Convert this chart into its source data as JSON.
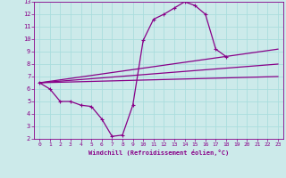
{
  "xlabel": "Windchill (Refroidissement éolien,°C)",
  "xlim": [
    -0.5,
    23.5
  ],
  "ylim": [
    2,
    13
  ],
  "xticks": [
    0,
    1,
    2,
    3,
    4,
    5,
    6,
    7,
    8,
    9,
    10,
    11,
    12,
    13,
    14,
    15,
    16,
    17,
    18,
    19,
    20,
    21,
    22,
    23
  ],
  "yticks": [
    2,
    3,
    4,
    5,
    6,
    7,
    8,
    9,
    10,
    11,
    12,
    13
  ],
  "bg_color": "#cceaea",
  "line_color": "#880088",
  "grid_color": "#aadddd",
  "main_x": [
    0,
    1,
    2,
    3,
    4,
    5,
    6,
    7,
    8,
    9,
    10,
    11,
    12,
    13,
    14,
    15,
    16,
    17,
    18
  ],
  "main_y": [
    6.5,
    6.0,
    5.0,
    5.0,
    4.7,
    4.6,
    3.6,
    2.2,
    2.3,
    4.7,
    9.9,
    11.6,
    12.0,
    12.5,
    13.0,
    12.7,
    12.0,
    9.2,
    8.6
  ],
  "line2_x": [
    0,
    23
  ],
  "line2_y": [
    6.5,
    9.2
  ],
  "line3_x": [
    0,
    23
  ],
  "line3_y": [
    6.5,
    8.0
  ],
  "line4_x": [
    0,
    23
  ],
  "line4_y": [
    6.5,
    7.0
  ]
}
